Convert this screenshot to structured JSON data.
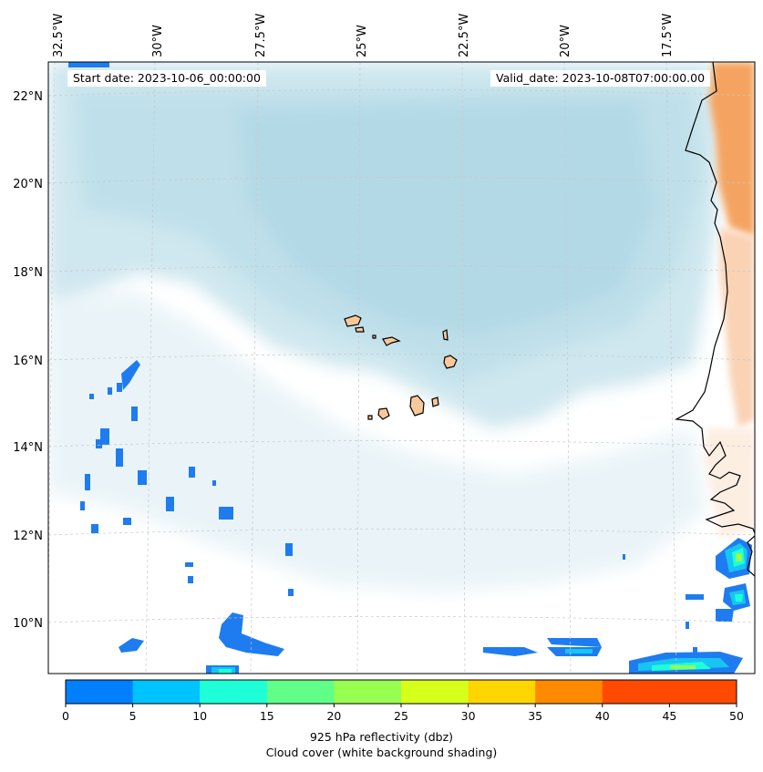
{
  "map": {
    "start_date": "Start date: 2023-10-06_00:00:00",
    "valid_date": "Valid_date: 2023-10-08T07:00:00.00",
    "lon_labels": [
      "32.5°W",
      "30°W",
      "27.5°W",
      "25°W",
      "22.5°W",
      "20°W",
      "17.5°W"
    ],
    "lat_labels": [
      "22°N",
      "20°N",
      "18°N",
      "16°N",
      "14°N",
      "12°N",
      "10°N"
    ],
    "place_features": [
      "Cape Verde islands",
      "West African coast"
    ]
  },
  "colorbar": {
    "ticks": [
      "0",
      "5",
      "10",
      "15",
      "20",
      "25",
      "30",
      "35",
      "40",
      "45",
      "50"
    ],
    "colors": [
      "#0080ff",
      "#00c4ff",
      "#1effd8",
      "#60ff88",
      "#96ff50",
      "#d6ff1a",
      "#ffd500",
      "#ff8a00",
      "#ff4a00"
    ],
    "label_line1": "925 hPa reflectivity (dbz)",
    "label_line2": "Cloud cover (white background shading)"
  },
  "colors": {
    "cloud": "#bfe0ea",
    "cloud_light": "#e3f1f6",
    "land_orange": "#f4a460",
    "land_light": "#fde0c8",
    "island_fill": "#f9c89a",
    "echo_blue": "#1e7cf0",
    "echo_cyan": "#17c5f2"
  }
}
